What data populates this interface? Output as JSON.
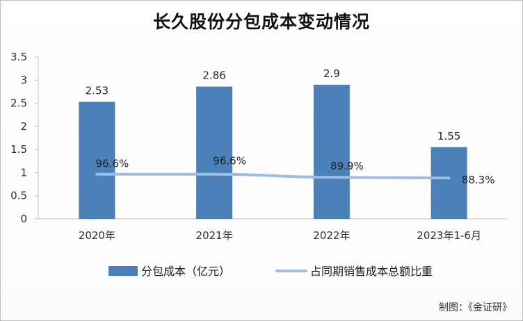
{
  "chart_data": {
    "type": "bar",
    "title": "长久股份分包成本变动情况",
    "categories": [
      "2020年",
      "2021年",
      "2022年",
      "2023年1-6月"
    ],
    "ylim": [
      0,
      3.5
    ],
    "yticks": [
      "0",
      "0.5",
      "1",
      "1.5",
      "2",
      "2.5",
      "3",
      "3.5"
    ],
    "series": [
      {
        "name": "分包成本（亿元）",
        "kind": "bar",
        "values": [
          2.53,
          2.86,
          2.9,
          1.55
        ],
        "labels": [
          "2.53",
          "2.86",
          "2.9",
          "1.55"
        ],
        "color": "#4a81b9"
      },
      {
        "name": "占同期销售成本总额比重",
        "kind": "line",
        "values": [
          0.966,
          0.966,
          0.899,
          0.883
        ],
        "labels": [
          "96.6%",
          "96.6%",
          "89.9%",
          "88.3%"
        ],
        "color": "#9dbde3"
      }
    ],
    "legend_position": "bottom",
    "grid": false
  },
  "credit": "制图：《金证研》"
}
